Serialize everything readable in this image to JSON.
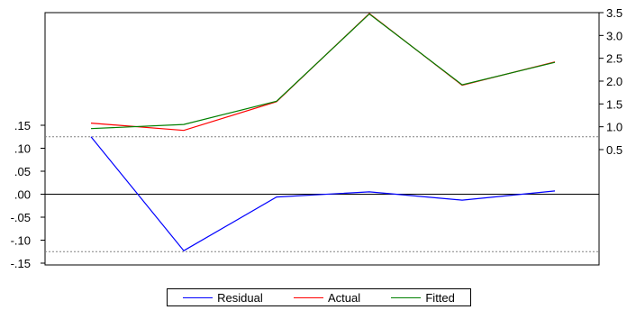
{
  "chart_data": {
    "type": "line",
    "title": "",
    "x": [
      1,
      2,
      3,
      4,
      5,
      6
    ],
    "left_axis": {
      "ylim": [
        -0.15,
        0.15
      ],
      "ticks": [
        0.15,
        0.1,
        0.05,
        0.0,
        -0.05,
        -0.1,
        -0.15
      ],
      "tick_labels": [
        ".15",
        ".10",
        ".05",
        ".00",
        "-.05",
        "-.10",
        "-.15"
      ]
    },
    "right_axis": {
      "ylim": [
        0.5,
        3.5
      ],
      "ticks": [
        3.5,
        3.0,
        2.5,
        2.0,
        1.5,
        1.0,
        0.5
      ],
      "tick_labels": [
        "3.5",
        "3.0",
        "2.5",
        "2.0",
        "1.5",
        "1.0",
        "0.5"
      ]
    },
    "series": [
      {
        "name": "Residual",
        "axis": "left",
        "color": "#0000ff",
        "values": [
          0.125,
          -0.123,
          -0.006,
          0.005,
          -0.013,
          0.007
        ]
      },
      {
        "name": "Actual",
        "axis": "right",
        "color": "#ff0000",
        "values": [
          1.08,
          0.92,
          1.55,
          3.48,
          1.91,
          2.42
        ]
      },
      {
        "name": "Fitted",
        "axis": "right",
        "color": "#008000",
        "values": [
          0.96,
          1.05,
          1.56,
          3.47,
          1.92,
          2.41
        ]
      }
    ],
    "reference_lines": [
      {
        "axis": "left",
        "value": 0.0,
        "style": "solid",
        "color": "#000000"
      },
      {
        "axis": "left",
        "value": 0.125,
        "style": "dashed",
        "color": "#808080"
      },
      {
        "axis": "left",
        "value": -0.125,
        "style": "dashed",
        "color": "#808080"
      }
    ],
    "grid": false,
    "legend_position": "bottom-center"
  }
}
